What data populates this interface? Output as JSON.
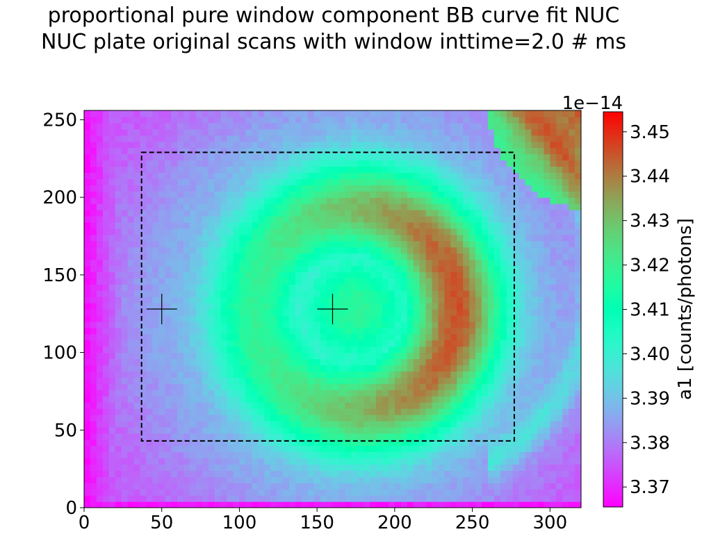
{
  "title_lines": [
    "proportional pure window component BB curve fit NUC",
    "NUC plate original scans with window inttime=2.0 # ms"
  ],
  "chart_data": {
    "type": "heatmap",
    "xlim": [
      0,
      320
    ],
    "ylim": [
      0,
      256
    ],
    "xticks": [
      0,
      50,
      100,
      150,
      200,
      250,
      300
    ],
    "yticks": [
      0,
      50,
      100,
      150,
      200,
      250
    ],
    "colorbar": {
      "label": "a1 [counts/photons]",
      "offset_label": "1e−14",
      "vmin": 3.3655,
      "vmax": 3.4545,
      "ticks": [
        3.37,
        3.38,
        3.39,
        3.4,
        3.41,
        3.42,
        3.43,
        3.44,
        3.45
      ],
      "tick_labels": [
        "3.37",
        "3.38",
        "3.39",
        "3.40",
        "3.41",
        "3.42",
        "3.43",
        "3.44",
        "3.45"
      ],
      "colormap": "rainbow"
    },
    "roi_rectangle": {
      "x0": 37,
      "x1": 277,
      "y0": 43,
      "y1": 229,
      "style": "dashed",
      "color": "#000000"
    },
    "markers": [
      {
        "x": 50,
        "y": 128,
        "symbol": "+"
      },
      {
        "x": 160,
        "y": 128,
        "symbol": "+"
      }
    ],
    "field_description": {
      "ring_center": [
        175,
        128
      ],
      "inner_core_value": 3.418,
      "ring_peak_value": 3.445,
      "ring_peak_radius": 65,
      "outer_value": 3.385,
      "edge_value": 3.37,
      "top_right_hotspot_value": 3.45
    }
  }
}
